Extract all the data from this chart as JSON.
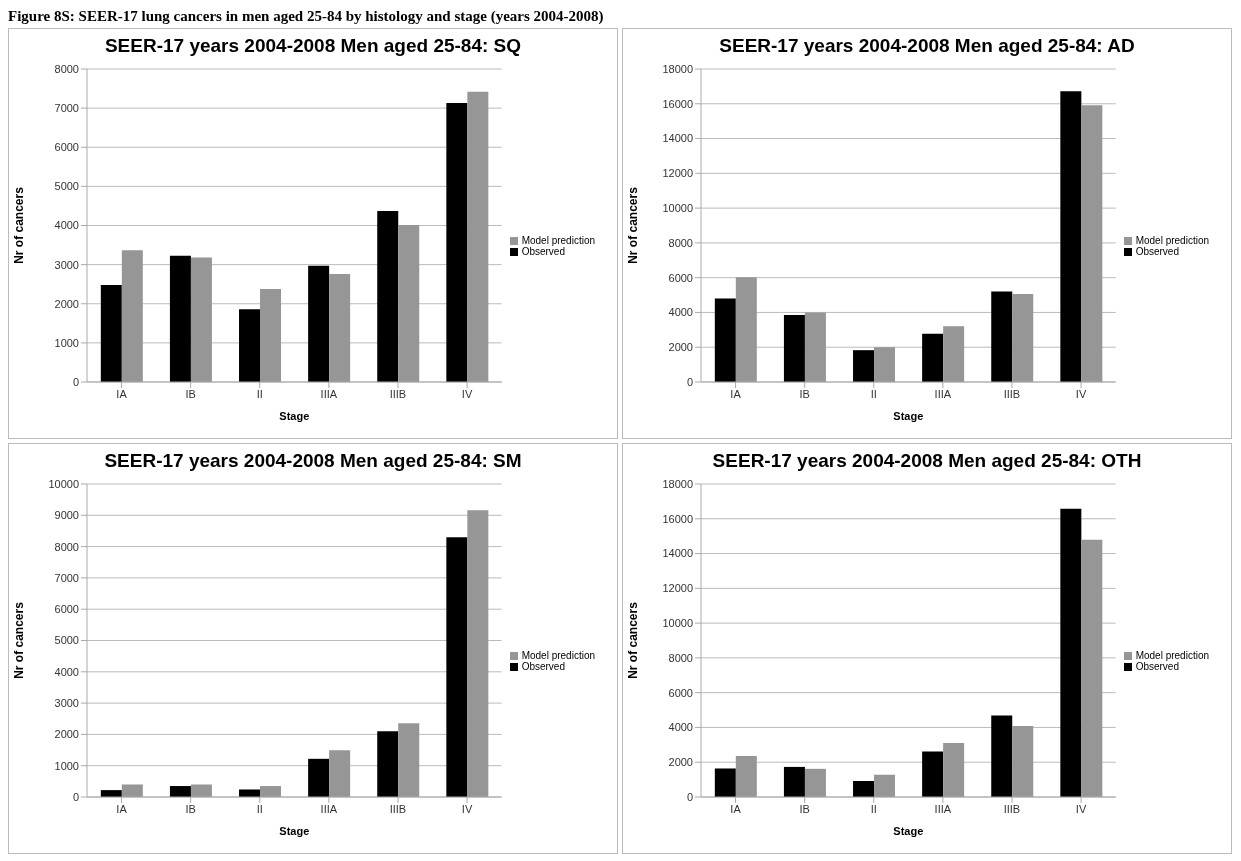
{
  "chart_data": [
    {
      "type": "bar",
      "title": "SEER-17 years 2004-2008 Men aged 25-84: SQ",
      "xlabel": "Stage",
      "ylabel": "Nr of cancers",
      "annotations": [
        "Figure 8S: SEER-17 lung cancers in men aged 25-84 by histology and stage (years 2004-2008)"
      ],
      "categories": [
        "IA",
        "IB",
        "II",
        "IIIA",
        "IIIB",
        "IV"
      ],
      "series": [
        {
          "name": "Observed",
          "color": "#000000",
          "values": [
            2480,
            3230,
            1860,
            2970,
            4370,
            7130
          ]
        },
        {
          "name": "Model prediction",
          "color": "#969696",
          "values": [
            3370,
            3180,
            2380,
            2760,
            4010,
            7420
          ]
        }
      ],
      "ylim": [
        0,
        8000
      ],
      "yticks": [
        0,
        1000,
        2000,
        3000,
        4000,
        5000,
        6000,
        7000,
        8000
      ],
      "grid": "y",
      "legend": "right"
    },
    {
      "type": "bar",
      "title": "SEER-17 years 2004-2008 Men aged 25-84: AD",
      "xlabel": "Stage",
      "ylabel": "Nr of cancers",
      "categories": [
        "IA",
        "IB",
        "II",
        "IIIA",
        "IIIB",
        "IV"
      ],
      "series": [
        {
          "name": "Observed",
          "color": "#000000",
          "values": [
            4800,
            3850,
            1830,
            2770,
            5200,
            16720
          ]
        },
        {
          "name": "Model prediction",
          "color": "#969696",
          "values": [
            6020,
            4000,
            2000,
            3200,
            5060,
            15920
          ]
        }
      ],
      "ylim": [
        0,
        18000
      ],
      "yticks": [
        0,
        2000,
        4000,
        6000,
        8000,
        10000,
        12000,
        14000,
        16000,
        18000
      ],
      "grid": "y",
      "legend": "right"
    },
    {
      "type": "bar",
      "title": "SEER-17 years 2004-2008 Men aged 25-84: SM",
      "xlabel": "Stage",
      "ylabel": "Nr of cancers",
      "categories": [
        "IA",
        "IB",
        "II",
        "IIIA",
        "IIIB",
        "IV"
      ],
      "series": [
        {
          "name": "Observed",
          "color": "#000000",
          "values": [
            220,
            350,
            240,
            1220,
            2100,
            8300
          ]
        },
        {
          "name": "Model prediction",
          "color": "#969696",
          "values": [
            400,
            400,
            350,
            1490,
            2360,
            9160
          ]
        }
      ],
      "ylim": [
        0,
        10000
      ],
      "yticks": [
        0,
        1000,
        2000,
        3000,
        4000,
        5000,
        6000,
        7000,
        8000,
        9000,
        10000
      ],
      "grid": "y",
      "legend": "right"
    },
    {
      "type": "bar",
      "title": "SEER-17 years 2004-2008 Men aged 25-84: OTH",
      "xlabel": "Stage",
      "ylabel": "Nr of cancers",
      "categories": [
        "IA",
        "IB",
        "II",
        "IIIA",
        "IIIB",
        "IV"
      ],
      "series": [
        {
          "name": "Observed",
          "color": "#000000",
          "values": [
            1640,
            1730,
            920,
            2620,
            4690,
            16580
          ]
        },
        {
          "name": "Model prediction",
          "color": "#969696",
          "values": [
            2360,
            1620,
            1280,
            3110,
            4090,
            14800
          ]
        }
      ],
      "ylim": [
        0,
        18000
      ],
      "yticks": [
        0,
        2000,
        4000,
        6000,
        8000,
        10000,
        12000,
        14000,
        16000,
        18000
      ],
      "grid": "y",
      "legend": "right"
    }
  ]
}
